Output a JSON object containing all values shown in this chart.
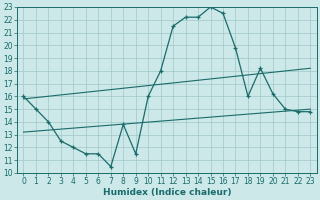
{
  "xlabel": "Humidex (Indice chaleur)",
  "bg_color": "#cce8e8",
  "line_color": "#1a6b6b",
  "grid_color": "#a0c8c8",
  "line1_x": [
    0,
    1,
    2,
    3,
    4,
    5,
    6,
    7,
    8,
    9,
    10,
    11,
    12,
    13,
    14,
    15,
    16,
    17,
    18,
    19,
    20,
    21,
    22,
    23
  ],
  "line1_y": [
    16,
    15,
    14,
    12.5,
    12.0,
    11.5,
    11.5,
    10.5,
    13.8,
    11.5,
    16.0,
    18.0,
    21.5,
    22.2,
    22.2,
    23.0,
    22.5,
    19.8,
    16.0,
    18.2,
    16.2,
    15.0,
    14.8,
    14.8
  ],
  "line2_x": [
    0,
    23
  ],
  "line2_y": [
    15.8,
    18.2
  ],
  "line3_x": [
    0,
    23
  ],
  "line3_y": [
    13.2,
    15.0
  ],
  "xlim": [
    -0.5,
    23.5
  ],
  "ylim": [
    10,
    23
  ],
  "yticks": [
    10,
    11,
    12,
    13,
    14,
    15,
    16,
    17,
    18,
    19,
    20,
    21,
    22,
    23
  ],
  "xticks": [
    0,
    1,
    2,
    3,
    4,
    5,
    6,
    7,
    8,
    9,
    10,
    11,
    12,
    13,
    14,
    15,
    16,
    17,
    18,
    19,
    20,
    21,
    22,
    23
  ],
  "tick_fontsize": 5.5,
  "xlabel_fontsize": 6.5,
  "marker": "+"
}
